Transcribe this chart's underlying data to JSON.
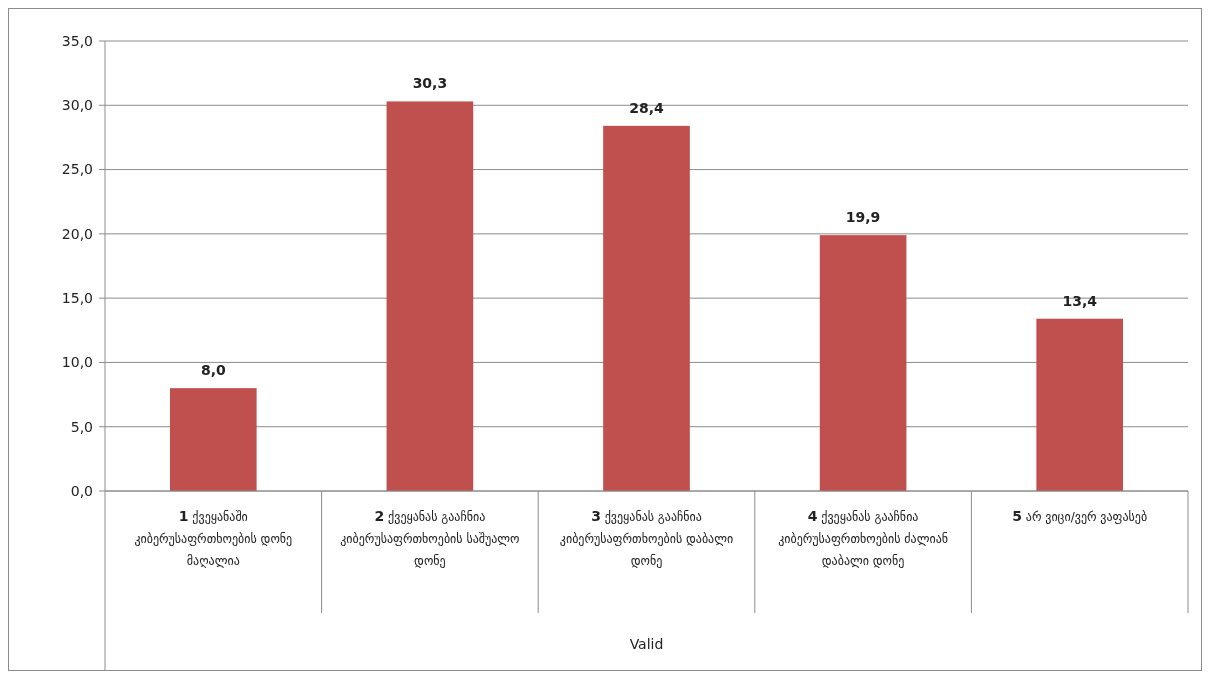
{
  "chart_data": {
    "type": "bar",
    "annotations": [
      "Valid"
    ],
    "categories": [
      "1 ქვეყანაში კიბერუსაფრთხოების დონე მაღალია",
      "2 ქვეყანას გააჩნია კიბერუსაფრთხოების საშუალო დონე",
      "3 ქვეყანას გააჩნია კიბერუსაფრთხოების დაბალი დონე",
      "4 ქვეყანას გააჩნია კიბერუსაფრთხოების ძალიან დაბალი დონე",
      "5 არ ვიცი/ვერ ვაფასებ"
    ],
    "values": [
      8.0,
      30.3,
      28.4,
      19.9,
      13.4
    ],
    "value_labels": [
      "8,0",
      "30,3",
      "28,4",
      "19,9",
      "13,4"
    ],
    "color": "#c0504d",
    "ylim": [
      0,
      35
    ],
    "yticks": [
      {
        "value": 0,
        "label": "0,0"
      },
      {
        "value": 5,
        "label": "5,0"
      },
      {
        "value": 10,
        "label": "10,0"
      },
      {
        "value": 15,
        "label": "15,0"
      },
      {
        "value": 20,
        "label": "20,0"
      },
      {
        "value": 25,
        "label": "25,0"
      },
      {
        "value": 30,
        "label": "30,0"
      },
      {
        "value": 35,
        "label": "35,0"
      }
    ],
    "grid": "y"
  }
}
